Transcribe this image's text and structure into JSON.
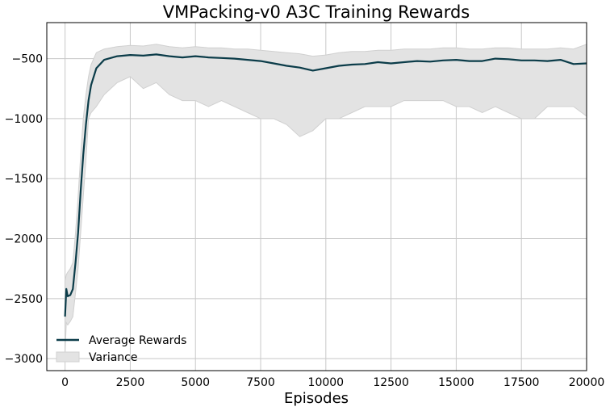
{
  "chart_data": {
    "type": "line",
    "title": "VMPacking-v0 A3C Training Rewards",
    "xlabel": "Episodes",
    "ylabel": "",
    "xlim": [
      -700,
      20000
    ],
    "ylim": [
      -3100,
      -200
    ],
    "xticks": [
      0,
      2500,
      5000,
      7500,
      10000,
      12500,
      15000,
      17500,
      20000
    ],
    "xtick_labels": [
      "0",
      "2500",
      "5000",
      "7500",
      "10000",
      "12500",
      "15000",
      "17500",
      "20000"
    ],
    "yticks": [
      -3000,
      -2500,
      -2000,
      -1500,
      -1000,
      -500
    ],
    "ytick_labels": [
      "−3000",
      "−2500",
      "−2000",
      "−1500",
      "−1000",
      "−500"
    ],
    "grid": true,
    "legend": {
      "placement": "lower-left",
      "entries": [
        "Average Rewards",
        "Variance"
      ]
    },
    "colors": {
      "line": "#0b3c49",
      "band": "#e3e3e3",
      "band_edge": "#d0d0d0",
      "grid": "#c8c8c8"
    },
    "series": [
      {
        "name": "Average Rewards",
        "x": [
          0,
          50,
          100,
          200,
          300,
          400,
          500,
          600,
          700,
          800,
          900,
          1000,
          1200,
          1500,
          2000,
          2500,
          3000,
          3500,
          4000,
          4500,
          5000,
          5500,
          6000,
          6500,
          7000,
          7500,
          8000,
          8500,
          9000,
          9500,
          10000,
          10500,
          11000,
          11500,
          12000,
          12500,
          13000,
          13500,
          14000,
          14500,
          15000,
          15500,
          16000,
          16500,
          17000,
          17500,
          18000,
          18500,
          19000,
          19500,
          20000
        ],
        "values": [
          -2650,
          -2420,
          -2480,
          -2470,
          -2420,
          -2200,
          -1950,
          -1600,
          -1300,
          -1050,
          -850,
          -720,
          -580,
          -510,
          -480,
          -470,
          -475,
          -465,
          -480,
          -490,
          -480,
          -490,
          -495,
          -500,
          -510,
          -520,
          -540,
          -560,
          -575,
          -600,
          -580,
          -560,
          -550,
          -545,
          -530,
          -540,
          -530,
          -520,
          -525,
          -515,
          -510,
          -520,
          -520,
          -500,
          -505,
          -515,
          -515,
          -520,
          -510,
          -545,
          -540
        ]
      },
      {
        "name": "Variance",
        "x": [
          0,
          50,
          100,
          200,
          300,
          400,
          500,
          600,
          700,
          800,
          900,
          1000,
          1200,
          1500,
          2000,
          2500,
          3000,
          3500,
          4000,
          4500,
          5000,
          5500,
          6000,
          6500,
          7000,
          7500,
          8000,
          8500,
          9000,
          9500,
          10000,
          10500,
          11000,
          11500,
          12000,
          12500,
          13000,
          13500,
          14000,
          14500,
          15000,
          15500,
          16000,
          16500,
          17000,
          17500,
          18000,
          18500,
          19000,
          19500,
          20000
        ],
        "upper": [
          -2350,
          -2300,
          -2280,
          -2250,
          -2200,
          -1950,
          -1650,
          -1300,
          -1000,
          -800,
          -650,
          -550,
          -450,
          -420,
          -400,
          -390,
          -395,
          -380,
          -400,
          -410,
          -400,
          -410,
          -410,
          -420,
          -420,
          -430,
          -440,
          -450,
          -460,
          -480,
          -470,
          -450,
          -440,
          -440,
          -430,
          -430,
          -420,
          -420,
          -420,
          -410,
          -410,
          -420,
          -420,
          -410,
          -410,
          -420,
          -420,
          -420,
          -410,
          -420,
          -380
        ],
        "lower": [
          -2950,
          -2700,
          -2720,
          -2690,
          -2650,
          -2450,
          -2250,
          -1950,
          -1650,
          -1350,
          -1000,
          -950,
          -900,
          -800,
          -700,
          -650,
          -750,
          -700,
          -800,
          -850,
          -850,
          -900,
          -850,
          -900,
          -950,
          -1000,
          -1000,
          -1050,
          -1150,
          -1100,
          -1000,
          -1000,
          -950,
          -900,
          -900,
          -900,
          -850,
          -850,
          -850,
          -850,
          -900,
          -900,
          -950,
          -900,
          -950,
          -1000,
          -1000,
          -900,
          -900,
          -900,
          -980
        ]
      }
    ]
  }
}
